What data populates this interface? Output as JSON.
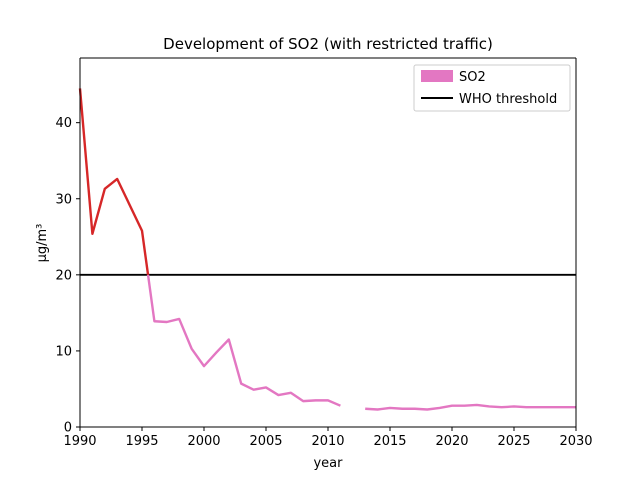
{
  "chart_data": {
    "type": "line",
    "title": "Development of SO2 (with restricted traffic)",
    "xlabel": "year",
    "ylabel": "µg/m³",
    "xlim": [
      1990,
      2030
    ],
    "ylim": [
      0,
      48.5
    ],
    "xticks": [
      1990,
      1995,
      2000,
      2005,
      2010,
      2015,
      2020,
      2025,
      2030
    ],
    "yticks": [
      0,
      10,
      20,
      30,
      40
    ],
    "grid": false,
    "legend_position": "top-right",
    "colors": {
      "so2": "#e377c2",
      "above_threshold": "#d62728",
      "threshold": "#000000"
    },
    "series": [
      {
        "name": "SO2",
        "segments": [
          [
            [
              1990,
              44.5
            ],
            [
              1991,
              25.4
            ],
            [
              1992,
              31.3
            ],
            [
              1993,
              32.6
            ],
            [
              1994,
              29.2
            ],
            [
              1995,
              25.8
            ],
            [
              1996,
              13.9
            ],
            [
              1997,
              13.8
            ],
            [
              1998,
              14.2
            ],
            [
              1999,
              10.3
            ],
            [
              2000,
              8.0
            ],
            [
              2001,
              9.8
            ],
            [
              2002,
              11.5
            ],
            [
              2003,
              5.7
            ],
            [
              2004,
              4.9
            ],
            [
              2005,
              5.2
            ],
            [
              2006,
              4.2
            ],
            [
              2007,
              4.5
            ],
            [
              2008,
              3.4
            ],
            [
              2009,
              3.5
            ],
            [
              2010,
              3.5
            ],
            [
              2011,
              2.8
            ]
          ],
          [
            [
              2013,
              2.4
            ],
            [
              2014,
              2.3
            ],
            [
              2015,
              2.5
            ],
            [
              2016,
              2.4
            ],
            [
              2017,
              2.4
            ],
            [
              2018,
              2.3
            ],
            [
              2019,
              2.5
            ],
            [
              2020,
              2.8
            ],
            [
              2021,
              2.8
            ],
            [
              2022,
              2.9
            ],
            [
              2023,
              2.7
            ],
            [
              2024,
              2.6
            ],
            [
              2025,
              2.7
            ],
            [
              2026,
              2.6
            ],
            [
              2027,
              2.6
            ],
            [
              2028,
              2.6
            ],
            [
              2029,
              2.6
            ],
            [
              2030,
              2.6
            ]
          ]
        ]
      },
      {
        "name": "WHO threshold",
        "value": 20
      }
    ]
  }
}
